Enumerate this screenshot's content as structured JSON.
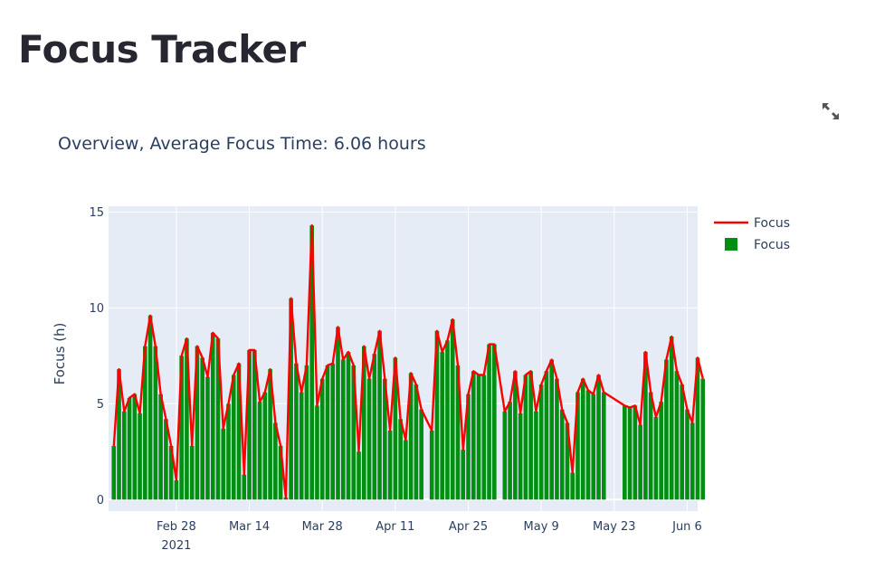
{
  "page": {
    "title": "Focus Tracker"
  },
  "toolbar": {
    "expand_icon": "expand-icon"
  },
  "colors": {
    "bar": "#008f11",
    "line": "#ff0000",
    "plot_bg": "#e5ecf6",
    "grid": "#ffffff",
    "text": "#2a3f5f"
  },
  "chart_data": {
    "type": "bar",
    "title": "Overview, Average Focus Time: 6.06 hours",
    "ylabel": "Focus (h)",
    "xlabel": "",
    "ylim": [
      -0.6,
      15.3
    ],
    "yticks": [
      0,
      5,
      10,
      15
    ],
    "xlim": [
      "2021-02-15",
      "2021-06-08"
    ],
    "xticks": [
      {
        "date": "2021-02-28",
        "label": "Feb 28",
        "sublabel": "2021"
      },
      {
        "date": "2021-03-14",
        "label": "Mar 14",
        "sublabel": ""
      },
      {
        "date": "2021-03-28",
        "label": "Mar 28",
        "sublabel": ""
      },
      {
        "date": "2021-04-11",
        "label": "Apr 11",
        "sublabel": ""
      },
      {
        "date": "2021-04-25",
        "label": "Apr 25",
        "sublabel": ""
      },
      {
        "date": "2021-05-09",
        "label": "May 9",
        "sublabel": ""
      },
      {
        "date": "2021-05-23",
        "label": "May 23",
        "sublabel": ""
      },
      {
        "date": "2021-06-06",
        "label": "Jun 6",
        "sublabel": ""
      }
    ],
    "legend": {
      "placement": "top-right",
      "entries": [
        {
          "name": "Focus",
          "kind": "line"
        },
        {
          "name": "Focus",
          "kind": "bar"
        }
      ]
    },
    "start_date": "2021-02-16",
    "series": [
      {
        "name": "Focus",
        "kind": "bar+line",
        "values": [
          2.8,
          6.8,
          4.6,
          5.3,
          5.5,
          4.5,
          8.0,
          9.6,
          8.0,
          5.5,
          4.2,
          2.8,
          1.0,
          7.5,
          8.4,
          2.8,
          8.0,
          7.4,
          6.4,
          8.7,
          8.4,
          3.7,
          5.0,
          6.5,
          7.1,
          1.3,
          7.8,
          7.8,
          5.1,
          5.6,
          6.8,
          4.0,
          2.8,
          0.1,
          10.5,
          7.1,
          5.6,
          7.0,
          14.3,
          4.9,
          6.3,
          7.0,
          7.1,
          9.0,
          7.3,
          7.7,
          7.0,
          2.5,
          8.0,
          6.3,
          7.6,
          8.8,
          6.3,
          3.6,
          7.4,
          4.2,
          3.1,
          6.6,
          6.0,
          4.7,
          null,
          3.6,
          8.8,
          7.7,
          8.3,
          9.4,
          7.0,
          2.6,
          5.5,
          6.7,
          6.5,
          6.5,
          8.1,
          8.1,
          null,
          4.6,
          5.1,
          6.7,
          4.5,
          6.5,
          6.7,
          4.6,
          6.0,
          6.7,
          7.3,
          6.3,
          4.7,
          4.0,
          1.4,
          5.6,
          6.3,
          5.7,
          5.5,
          6.5,
          5.6,
          null,
          null,
          null,
          4.9,
          4.8,
          4.9,
          3.9,
          7.7,
          5.6,
          4.3,
          5.1,
          7.3,
          8.5,
          6.7,
          6.0,
          4.7,
          4.0,
          7.4,
          6.3
        ]
      }
    ]
  }
}
